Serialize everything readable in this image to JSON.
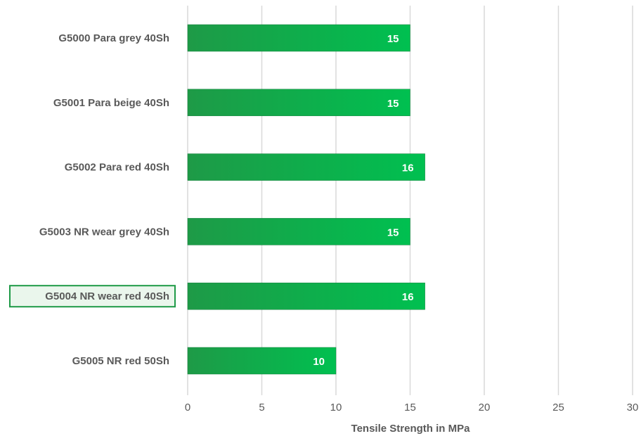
{
  "chart_data": {
    "type": "bar",
    "orientation": "horizontal",
    "categories": [
      "G5000 Para grey 40Sh",
      "G5001 Para beige 40Sh",
      "G5002 Para red 40Sh",
      "G5003 NR wear grey 40Sh",
      "G5004 NR wear red 40Sh",
      "G5005 NR red 50Sh"
    ],
    "values": [
      15,
      15,
      16,
      15,
      16,
      10
    ],
    "title": "",
    "xlabel": "Tensile Strength in MPa",
    "ylabel": "",
    "xlim": [
      0,
      30
    ],
    "xticks": [
      0,
      5,
      10,
      15,
      20,
      25,
      30
    ],
    "grid": "vertical",
    "highlighted_category": "G5004 NR wear red 40Sh",
    "colors": {
      "bar_start": "#1e9a47",
      "bar_end": "#00c050",
      "bar_edge": "#15803d",
      "highlight_border": "#1e9a47",
      "highlight_fill": "#eaf6ec",
      "value_text": "#ffffff",
      "label_text": "#595959",
      "grid": "#d9d9d9"
    }
  }
}
